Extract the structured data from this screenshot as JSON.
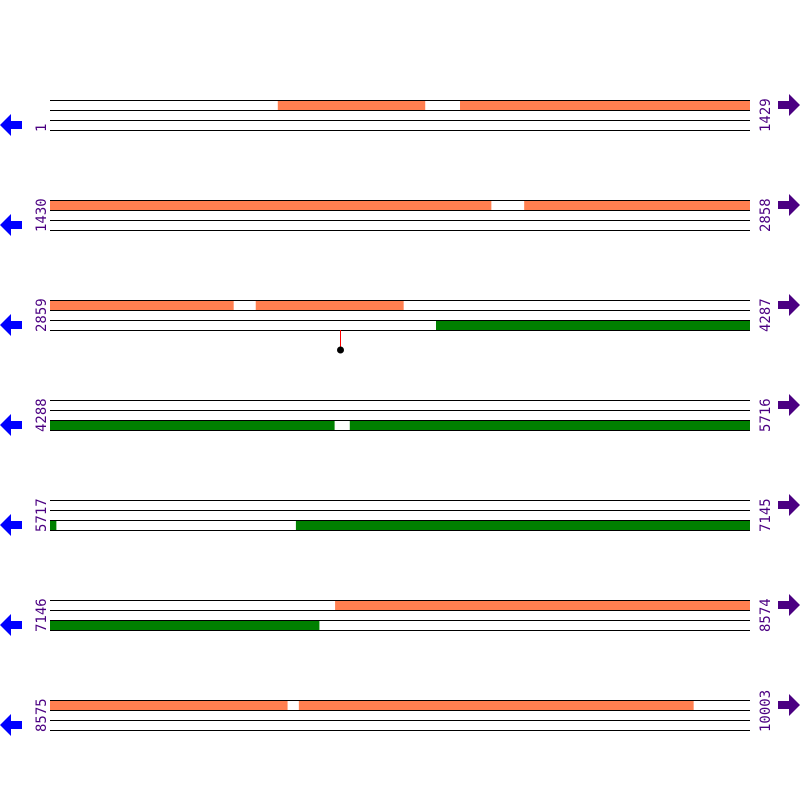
{
  "colors": {
    "forward_feature": "#FF7F50",
    "reverse_feature": "#008000",
    "label": "#4B0082",
    "left_arrow": "#0000FF",
    "right_arrow": "#4B0082",
    "marker_line": "#FF0000",
    "marker_dot": "#000000"
  },
  "icons": {
    "left": "arrow-left-icon",
    "right": "arrow-right-icon"
  },
  "rows": [
    {
      "start": "1",
      "end": "1429",
      "s": 1,
      "e": 1429,
      "top": [
        [
          466,
          766
        ],
        [
          838,
          1429
        ]
      ],
      "bottom": []
    },
    {
      "start": "1430",
      "end": "2858",
      "s": 1430,
      "e": 2858,
      "top": [
        [
          1430,
          2330
        ],
        [
          2398,
          2858
        ]
      ],
      "bottom": []
    },
    {
      "start": "2859",
      "end": "4287",
      "s": 2859,
      "e": 4287,
      "top": [
        [
          2859,
          3233
        ],
        [
          3279,
          3580
        ]
      ],
      "bottom": [
        [
          3647,
          4287
        ]
      ],
      "markers": [
        3451
      ]
    },
    {
      "start": "4288",
      "end": "5716",
      "s": 4288,
      "e": 5716,
      "top": [],
      "bottom": [
        [
          4288,
          4868
        ],
        [
          4900,
          5716
        ]
      ]
    },
    {
      "start": "5717",
      "end": "7145",
      "s": 5717,
      "e": 7145,
      "top": [],
      "bottom": [
        [
          5717,
          5729
        ],
        [
          6219,
          7145
        ]
      ]
    },
    {
      "start": "7146",
      "end": "8574",
      "s": 7146,
      "e": 8574,
      "top": [
        [
          7728,
          8574
        ]
      ],
      "bottom": [
        [
          7146,
          7695
        ]
      ]
    },
    {
      "start": "8575",
      "end": "10003",
      "s": 8575,
      "e": 10003,
      "top": [
        [
          8575,
          9059
        ],
        [
          9083,
          9888
        ]
      ],
      "bottom": []
    }
  ]
}
